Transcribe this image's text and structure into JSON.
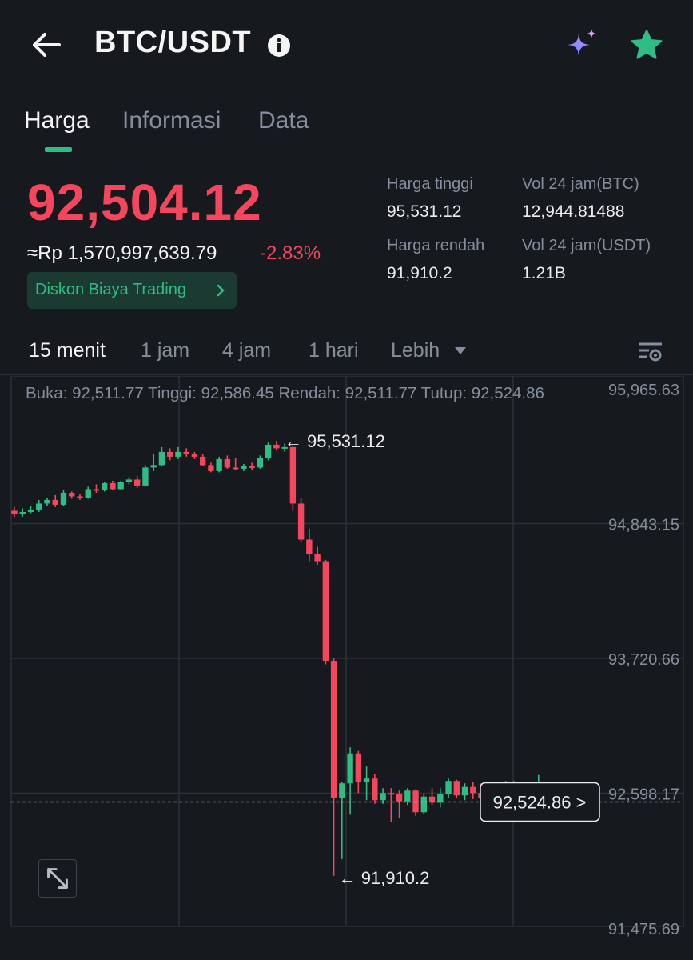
{
  "header": {
    "pair": "BTC/USDT",
    "icons": {
      "back": "arrow-left-icon",
      "info": "info-circle-icon",
      "ai": "sparkle-icon",
      "favorite": "star-icon"
    }
  },
  "tabs": [
    {
      "label": "Harga",
      "active": true
    },
    {
      "label": "Informasi",
      "active": false
    },
    {
      "label": "Data",
      "active": false
    }
  ],
  "ticker": {
    "last_price": "92,504.12",
    "idr_price": "≈Rp 1,570,997,639.79",
    "change": "-2.83%",
    "promo": "Diskon Biaya Trading",
    "stats": {
      "high_label": "Harga tinggi",
      "high_value": "95,531.12",
      "low_label": "Harga rendah",
      "low_value": "91,910.2",
      "vol_btc_label": "Vol 24 jam(BTC)",
      "vol_btc_value": "12,944.81488",
      "vol_usdt_label": "Vol 24 jam(USDT)",
      "vol_usdt_value": "1.21B"
    }
  },
  "intervals": [
    {
      "label": "15 menit",
      "active": true
    },
    {
      "label": "1 jam",
      "active": false
    },
    {
      "label": "4 jam",
      "active": false
    },
    {
      "label": "1 hari",
      "active": false
    },
    {
      "label": "Lebih",
      "active": false
    }
  ],
  "colors": {
    "up": "#2ebd85",
    "down": "#f6465d",
    "background": "#161a1e",
    "grid": "#2b3139",
    "text_muted": "#848e9c"
  },
  "chart_data": {
    "type": "candlestick",
    "ohlc_label": "Buka: 92,511.77 Tinggi: 92,586.45 Rendah: 92,511.77 Tutup: 92,524.86",
    "y_ticks": [
      "95,965.63",
      "94,843.15",
      "93,720.66",
      "92,598.17",
      "91,475.69"
    ],
    "y_tick_values": [
      95965.63,
      94843.15,
      93720.66,
      92598.17,
      91475.69
    ],
    "ylim": [
      91475.69,
      95965.63
    ],
    "high_marker": {
      "label": "← 95,531.12",
      "value": 95531.12
    },
    "low_marker": {
      "label": "← 91,910.2",
      "value": 91910.2
    },
    "current_price": {
      "label": "92,524.86 >",
      "value": 92524.86
    },
    "candles": [
      {
        "o": 94950,
        "h": 94980,
        "l": 94900,
        "c": 94920
      },
      {
        "o": 94920,
        "h": 94970,
        "l": 94900,
        "c": 94940
      },
      {
        "o": 94940,
        "h": 94990,
        "l": 94930,
        "c": 94960
      },
      {
        "o": 94960,
        "h": 95040,
        "l": 94940,
        "c": 95010
      },
      {
        "o": 95010,
        "h": 95060,
        "l": 94990,
        "c": 95040
      },
      {
        "o": 95040,
        "h": 95080,
        "l": 94980,
        "c": 95000
      },
      {
        "o": 95000,
        "h": 95120,
        "l": 94990,
        "c": 95100
      },
      {
        "o": 95100,
        "h": 95110,
        "l": 95050,
        "c": 95070
      },
      {
        "o": 95070,
        "h": 95090,
        "l": 95040,
        "c": 95060
      },
      {
        "o": 95060,
        "h": 95150,
        "l": 95050,
        "c": 95130
      },
      {
        "o": 95130,
        "h": 95170,
        "l": 95100,
        "c": 95120
      },
      {
        "o": 95120,
        "h": 95190,
        "l": 95110,
        "c": 95180
      },
      {
        "o": 95180,
        "h": 95200,
        "l": 95120,
        "c": 95130
      },
      {
        "o": 95130,
        "h": 95200,
        "l": 95120,
        "c": 95190
      },
      {
        "o": 95190,
        "h": 95230,
        "l": 95170,
        "c": 95210
      },
      {
        "o": 95210,
        "h": 95240,
        "l": 95140,
        "c": 95160
      },
      {
        "o": 95160,
        "h": 95330,
        "l": 95150,
        "c": 95310
      },
      {
        "o": 95310,
        "h": 95420,
        "l": 95280,
        "c": 95330
      },
      {
        "o": 95330,
        "h": 95480,
        "l": 95320,
        "c": 95440
      },
      {
        "o": 95440,
        "h": 95470,
        "l": 95370,
        "c": 95400
      },
      {
        "o": 95400,
        "h": 95480,
        "l": 95380,
        "c": 95440
      },
      {
        "o": 95440,
        "h": 95470,
        "l": 95400,
        "c": 95420
      },
      {
        "o": 95420,
        "h": 95440,
        "l": 95380,
        "c": 95400
      },
      {
        "o": 95400,
        "h": 95420,
        "l": 95320,
        "c": 95330
      },
      {
        "o": 95330,
        "h": 95350,
        "l": 95270,
        "c": 95280
      },
      {
        "o": 95280,
        "h": 95400,
        "l": 95270,
        "c": 95380
      },
      {
        "o": 95380,
        "h": 95410,
        "l": 95300,
        "c": 95310
      },
      {
        "o": 95310,
        "h": 95390,
        "l": 95290,
        "c": 95300
      },
      {
        "o": 95300,
        "h": 95340,
        "l": 95280,
        "c": 95320
      },
      {
        "o": 95320,
        "h": 95350,
        "l": 95290,
        "c": 95310
      },
      {
        "o": 95310,
        "h": 95410,
        "l": 95300,
        "c": 95390
      },
      {
        "o": 95390,
        "h": 95520,
        "l": 95370,
        "c": 95500
      },
      {
        "o": 95500,
        "h": 95531.12,
        "l": 95450,
        "c": 95470
      },
      {
        "o": 95470,
        "h": 95510,
        "l": 95440,
        "c": 95480
      },
      {
        "o": 95480,
        "h": 95490,
        "l": 94950,
        "c": 95010
      },
      {
        "o": 95010,
        "h": 95060,
        "l": 94690,
        "c": 94710
      },
      {
        "o": 94710,
        "h": 94800,
        "l": 94530,
        "c": 94590
      },
      {
        "o": 94590,
        "h": 94650,
        "l": 94500,
        "c": 94530
      },
      {
        "o": 94530,
        "h": 94540,
        "l": 93670,
        "c": 93700
      },
      {
        "o": 93700,
        "h": 93720,
        "l": 91910.2,
        "c": 92560
      },
      {
        "o": 92560,
        "h": 92690,
        "l": 92050,
        "c": 92680
      },
      {
        "o": 92680,
        "h": 92980,
        "l": 92420,
        "c": 92930
      },
      {
        "o": 92930,
        "h": 92950,
        "l": 92600,
        "c": 92690
      },
      {
        "o": 92690,
        "h": 92820,
        "l": 92540,
        "c": 92720
      },
      {
        "o": 92720,
        "h": 92760,
        "l": 92510,
        "c": 92540
      },
      {
        "o": 92540,
        "h": 92640,
        "l": 92510,
        "c": 92600
      },
      {
        "o": 92600,
        "h": 92640,
        "l": 92360,
        "c": 92590
      },
      {
        "o": 92590,
        "h": 92620,
        "l": 92390,
        "c": 92530
      },
      {
        "o": 92530,
        "h": 92640,
        "l": 92500,
        "c": 92620
      },
      {
        "o": 92620,
        "h": 92630,
        "l": 92410,
        "c": 92440
      },
      {
        "o": 92440,
        "h": 92590,
        "l": 92420,
        "c": 92570
      },
      {
        "o": 92570,
        "h": 92640,
        "l": 92500,
        "c": 92520
      },
      {
        "o": 92520,
        "h": 92640,
        "l": 92480,
        "c": 92590
      },
      {
        "o": 92590,
        "h": 92720,
        "l": 92560,
        "c": 92700
      },
      {
        "o": 92700,
        "h": 92710,
        "l": 92560,
        "c": 92580
      },
      {
        "o": 92580,
        "h": 92680,
        "l": 92540,
        "c": 92650
      },
      {
        "o": 92650,
        "h": 92690,
        "l": 92550,
        "c": 92600
      },
      {
        "o": 92600,
        "h": 92680,
        "l": 92530,
        "c": 92560
      },
      {
        "o": 92560,
        "h": 92690,
        "l": 92540,
        "c": 92640
      },
      {
        "o": 92640,
        "h": 92690,
        "l": 92580,
        "c": 92610
      },
      {
        "o": 92610,
        "h": 92700,
        "l": 92570,
        "c": 92650
      },
      {
        "o": 92650,
        "h": 92700,
        "l": 92580,
        "c": 92600
      },
      {
        "o": 92600,
        "h": 92690,
        "l": 92560,
        "c": 92620
      },
      {
        "o": 92620,
        "h": 92660,
        "l": 92560,
        "c": 92590
      },
      {
        "o": 92590,
        "h": 92750,
        "l": 92570,
        "c": 92620
      },
      {
        "o": 92511.77,
        "h": 92586.45,
        "l": 92511.77,
        "c": 92524.86
      }
    ]
  }
}
